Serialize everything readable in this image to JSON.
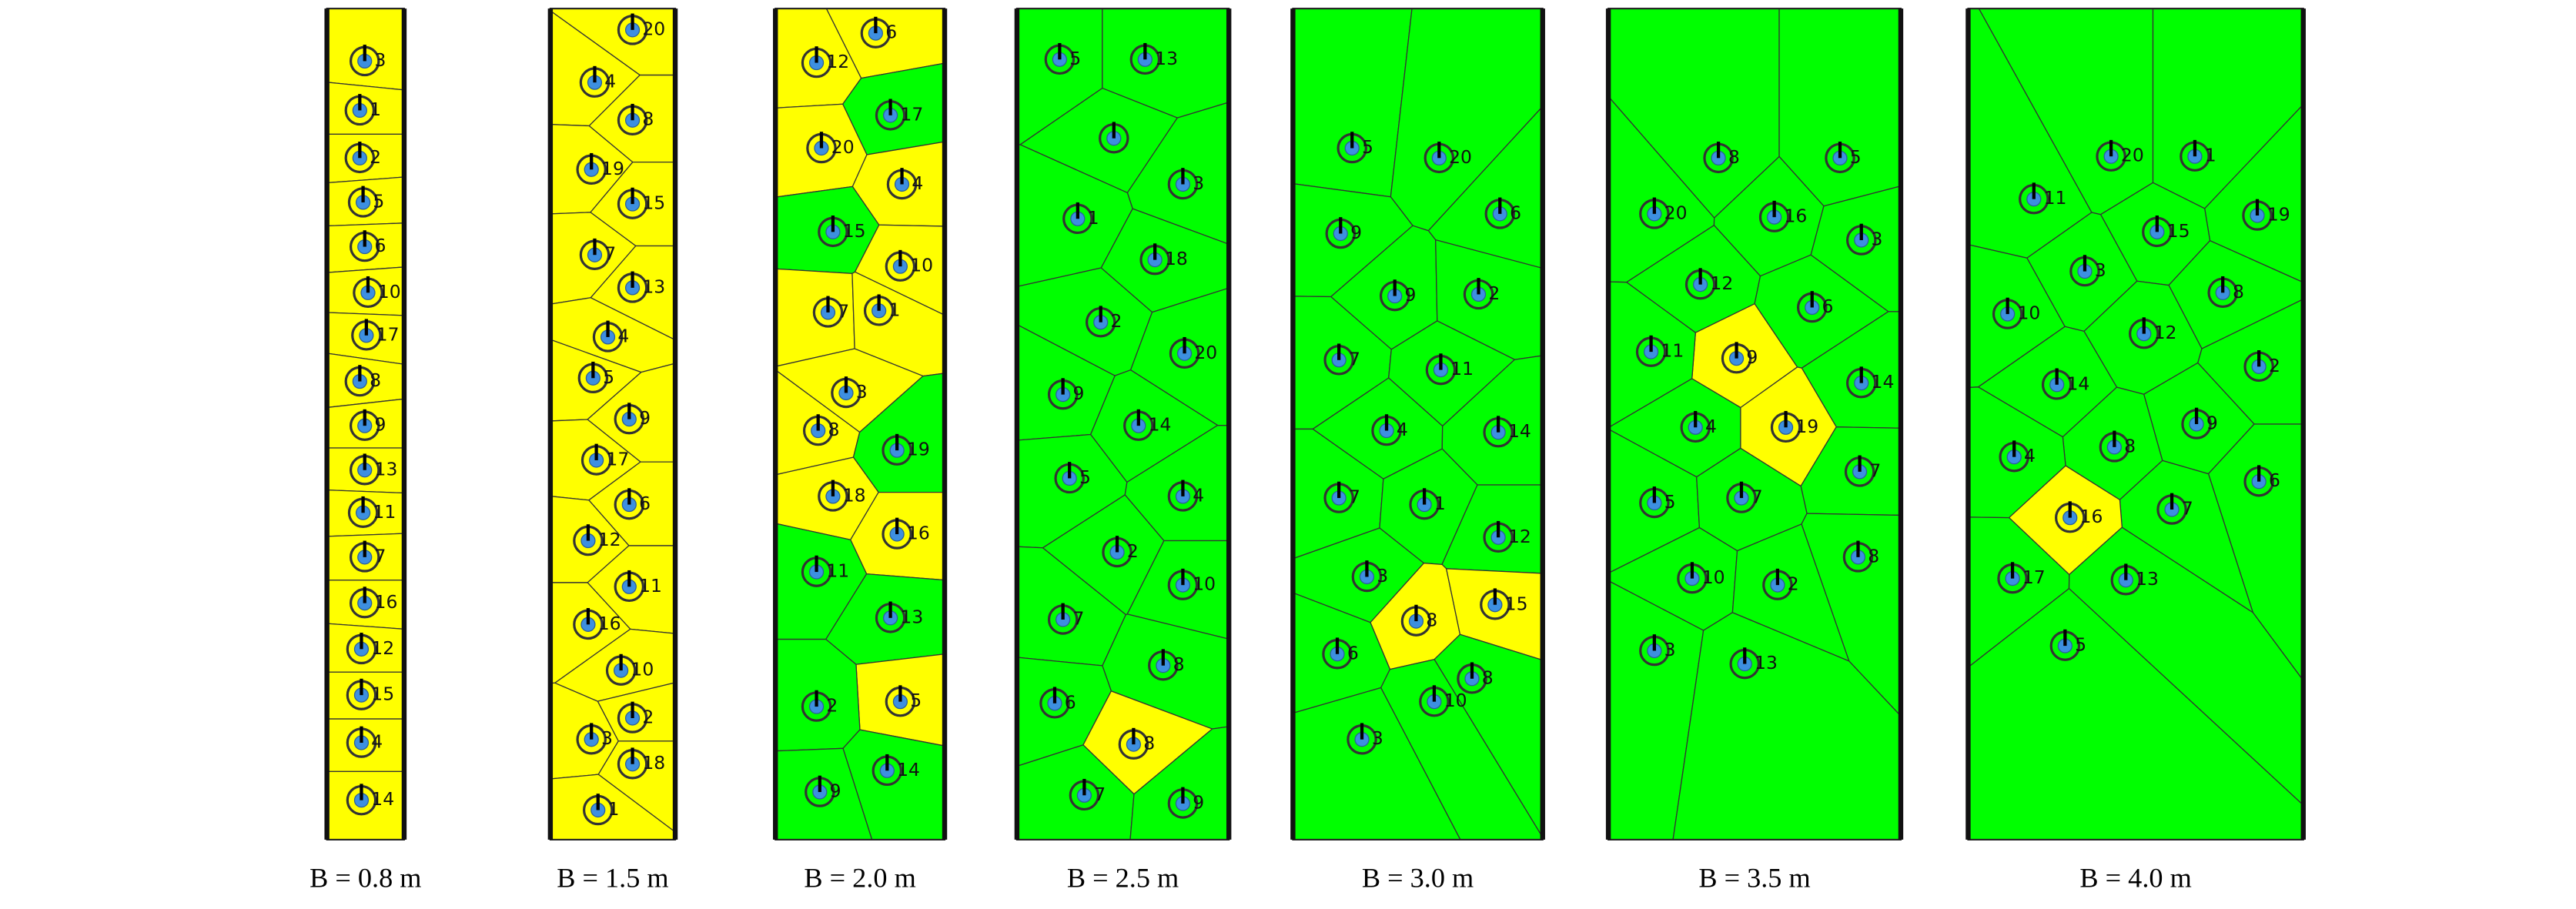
{
  "panels": [
    {
      "caption": "B = 0.8 m",
      "nodes": [
        {
          "label": "3",
          "color": "#ffff00"
        },
        {
          "label": "1",
          "color": "#ffff00"
        },
        {
          "label": "2",
          "color": "#ffff00"
        },
        {
          "label": "5",
          "color": "#ffff00"
        },
        {
          "label": "6",
          "color": "#ffff00"
        },
        {
          "label": "10",
          "color": "#ffff00"
        },
        {
          "label": "17",
          "color": "#ffff00"
        },
        {
          "label": "8",
          "color": "#ffff00"
        },
        {
          "label": "9",
          "color": "#ffff00"
        },
        {
          "label": "13",
          "color": "#ffff00"
        },
        {
          "label": "11",
          "color": "#ffff00"
        },
        {
          "label": "7",
          "color": "#ffff00"
        },
        {
          "label": "16",
          "color": "#ffff00"
        },
        {
          "label": "12",
          "color": "#ffff00"
        },
        {
          "label": "15",
          "color": "#ffff00"
        },
        {
          "label": "4",
          "color": "#ffff00"
        },
        {
          "label": "14",
          "color": "#ffff00"
        }
      ]
    },
    {
      "caption": "B = 1.5 m",
      "nodes": [
        {
          "label": "20",
          "color": "#ffff00"
        },
        {
          "label": "4",
          "color": "#ffff00"
        },
        {
          "label": "8",
          "color": "#ffff00"
        },
        {
          "label": "19",
          "color": "#ffff00"
        },
        {
          "label": "15",
          "color": "#ffff00"
        },
        {
          "label": "7",
          "color": "#ffff00"
        },
        {
          "label": "13",
          "color": "#ffff00"
        },
        {
          "label": "4",
          "color": "#ffff00"
        },
        {
          "label": "5",
          "color": "#ffff00"
        },
        {
          "label": "9",
          "color": "#ffff00"
        },
        {
          "label": "17",
          "color": "#ffff00"
        },
        {
          "label": "6",
          "color": "#ffff00"
        },
        {
          "label": "12",
          "color": "#ffff00"
        },
        {
          "label": "11",
          "color": "#ffff00"
        },
        {
          "label": "16",
          "color": "#ffff00"
        },
        {
          "label": "10",
          "color": "#ffff00"
        },
        {
          "label": "2",
          "color": "#ffff00"
        },
        {
          "label": "3",
          "color": "#ffff00"
        },
        {
          "label": "18",
          "color": "#ffff00"
        },
        {
          "label": "1",
          "color": "#ffff00"
        }
      ]
    },
    {
      "caption": "B = 2.0 m",
      "nodes": [
        {
          "label": "6",
          "color": "#ffff00"
        },
        {
          "label": "12",
          "color": "#ffff00"
        },
        {
          "label": "17",
          "color": "#00ff00"
        },
        {
          "label": "20",
          "color": "#ffff00"
        },
        {
          "label": "4",
          "color": "#ffff00"
        },
        {
          "label": "15",
          "color": "#00ff00"
        },
        {
          "label": "10",
          "color": "#ffff00"
        },
        {
          "label": "7",
          "color": "#ffff00"
        },
        {
          "label": "1",
          "color": "#ffff00"
        },
        {
          "label": "3",
          "color": "#ffff00"
        },
        {
          "label": "8",
          "color": "#ffff00"
        },
        {
          "label": "19",
          "color": "#00ff00"
        },
        {
          "label": "18",
          "color": "#ffff00"
        },
        {
          "label": "16",
          "color": "#ffff00"
        },
        {
          "label": "11",
          "color": "#00ff00"
        },
        {
          "label": "13",
          "color": "#00ff00"
        },
        {
          "label": "5",
          "color": "#ffff00"
        },
        {
          "label": "2",
          "color": "#00ff00"
        },
        {
          "label": "14",
          "color": "#00ff00"
        },
        {
          "label": "9",
          "color": "#00ff00"
        }
      ]
    },
    {
      "caption": "B = 2.5 m",
      "nodes": [
        {
          "label": "5",
          "color": "#00ff00"
        },
        {
          "label": "13",
          "color": "#00ff00"
        },
        {
          "color": "#00ff00"
        },
        {
          "label": "3",
          "color": "#00ff00"
        },
        {
          "label": "1",
          "color": "#00ff00"
        },
        {
          "label": "18",
          "color": "#00ff00"
        },
        {
          "label": "2",
          "color": "#00ff00"
        },
        {
          "label": "20",
          "color": "#00ff00"
        },
        {
          "label": "9",
          "color": "#00ff00"
        },
        {
          "label": "14",
          "color": "#00ff00"
        },
        {
          "label": "5",
          "color": "#00ff00"
        },
        {
          "label": "4",
          "color": "#00ff00"
        },
        {
          "label": "2",
          "color": "#00ff00"
        },
        {
          "label": "10",
          "color": "#00ff00"
        },
        {
          "label": "7",
          "color": "#00ff00"
        },
        {
          "label": "8",
          "color": "#00ff00"
        },
        {
          "label": "6",
          "color": "#00ff00"
        },
        {
          "label": "8",
          "color": "#ffff00"
        },
        {
          "label": "7",
          "color": "#00ff00"
        },
        {
          "label": "9",
          "color": "#00ff00"
        }
      ]
    },
    {
      "caption": "B = 3.0 m",
      "nodes": [
        {
          "label": "5",
          "color": "#00ff00"
        },
        {
          "label": "20",
          "color": "#00ff00"
        },
        {
          "label": "6",
          "color": "#00ff00"
        },
        {
          "label": "9",
          "color": "#00ff00"
        },
        {
          "label": "9",
          "color": "#00ff00"
        },
        {
          "label": "2",
          "color": "#00ff00"
        },
        {
          "label": "7",
          "color": "#00ff00"
        },
        {
          "label": "11",
          "color": "#00ff00"
        },
        {
          "label": "4",
          "color": "#00ff00"
        },
        {
          "label": "14",
          "color": "#00ff00"
        },
        {
          "label": "7",
          "color": "#00ff00"
        },
        {
          "label": "1",
          "color": "#00ff00"
        },
        {
          "label": "12",
          "color": "#00ff00"
        },
        {
          "label": "3",
          "color": "#00ff00"
        },
        {
          "label": "8",
          "color": "#ffff00"
        },
        {
          "label": "15",
          "color": "#ffff00"
        },
        {
          "label": "6",
          "color": "#00ff00"
        },
        {
          "label": "10",
          "color": "#00ff00"
        },
        {
          "label": "8",
          "color": "#00ff00"
        },
        {
          "label": "3",
          "color": "#00ff00"
        }
      ]
    },
    {
      "caption": "B = 3.5 m",
      "nodes": [
        {
          "label": "8",
          "color": "#00ff00"
        },
        {
          "label": "5",
          "color": "#00ff00"
        },
        {
          "label": "20",
          "color": "#00ff00"
        },
        {
          "label": "16",
          "color": "#00ff00"
        },
        {
          "label": "3",
          "color": "#00ff00"
        },
        {
          "label": "12",
          "color": "#00ff00"
        },
        {
          "label": "6",
          "color": "#00ff00"
        },
        {
          "label": "9",
          "color": "#ffff00"
        },
        {
          "label": "11",
          "color": "#00ff00"
        },
        {
          "label": "14",
          "color": "#00ff00"
        },
        {
          "label": "4",
          "color": "#00ff00"
        },
        {
          "label": "19",
          "color": "#ffff00"
        },
        {
          "label": "7",
          "color": "#00ff00"
        },
        {
          "label": "5",
          "color": "#00ff00"
        },
        {
          "label": "7",
          "color": "#00ff00"
        },
        {
          "label": "8",
          "color": "#00ff00"
        },
        {
          "label": "10",
          "color": "#00ff00"
        },
        {
          "label": "2",
          "color": "#00ff00"
        },
        {
          "label": "3",
          "color": "#00ff00"
        },
        {
          "label": "13",
          "color": "#00ff00"
        }
      ]
    },
    {
      "caption": "B = 4.0 m",
      "nodes": [
        {
          "label": "20",
          "color": "#00ff00"
        },
        {
          "label": "1",
          "color": "#00ff00"
        },
        {
          "label": "11",
          "color": "#00ff00"
        },
        {
          "label": "19",
          "color": "#00ff00"
        },
        {
          "label": "15",
          "color": "#00ff00"
        },
        {
          "label": "3",
          "color": "#00ff00"
        },
        {
          "label": "8",
          "color": "#00ff00"
        },
        {
          "label": "10",
          "color": "#00ff00"
        },
        {
          "label": "12",
          "color": "#00ff00"
        },
        {
          "label": "2",
          "color": "#00ff00"
        },
        {
          "label": "14",
          "color": "#00ff00"
        },
        {
          "label": "9",
          "color": "#00ff00"
        },
        {
          "label": "8",
          "color": "#00ff00"
        },
        {
          "label": "4",
          "color": "#00ff00"
        },
        {
          "label": "6",
          "color": "#00ff00"
        },
        {
          "label": "7",
          "color": "#00ff00"
        },
        {
          "label": "16",
          "color": "#ffff00"
        },
        {
          "label": "17",
          "color": "#00ff00"
        },
        {
          "label": "13",
          "color": "#00ff00"
        },
        {
          "label": "5",
          "color": "#00ff00"
        }
      ]
    }
  ]
}
